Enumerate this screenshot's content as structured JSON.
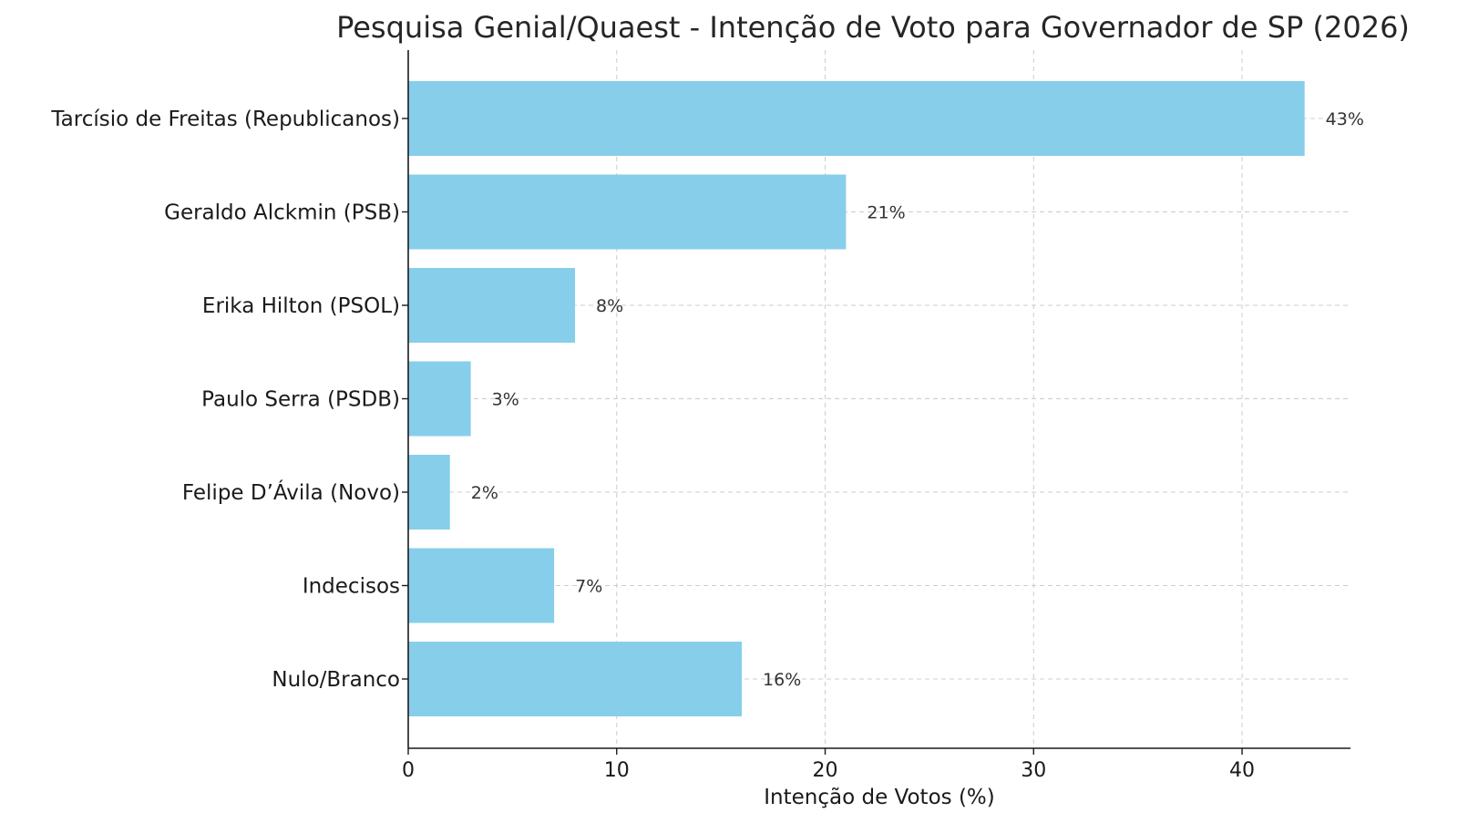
{
  "chart_data": {
    "type": "bar",
    "orientation": "horizontal",
    "title": "Pesquisa Genial/Quaest - Intenção de Voto para Governador de SP (2026)",
    "xlabel": "Intenção de Votos (%)",
    "ylabel": "",
    "categories": [
      "Tarcísio de Freitas (Republicanos)",
      "Geraldo Alckmin (PSB)",
      "Erika Hilton (PSOL)",
      "Paulo Serra (PSDB)",
      "Felipe D’Ávila (Novo)",
      "Indecisos",
      "Nulo/Branco"
    ],
    "values": [
      43,
      21,
      8,
      3,
      2,
      7,
      16
    ],
    "value_labels": [
      "43%",
      "21%",
      "8%",
      "3%",
      "2%",
      "7%",
      "16%"
    ],
    "xlim": [
      0,
      45.2
    ],
    "xticks": [
      0,
      10,
      20,
      30,
      40
    ],
    "xtick_labels": [
      "0",
      "10",
      "20",
      "30",
      "40"
    ],
    "grid": "dashed, both axes",
    "bar_color": "#87CEEB"
  }
}
